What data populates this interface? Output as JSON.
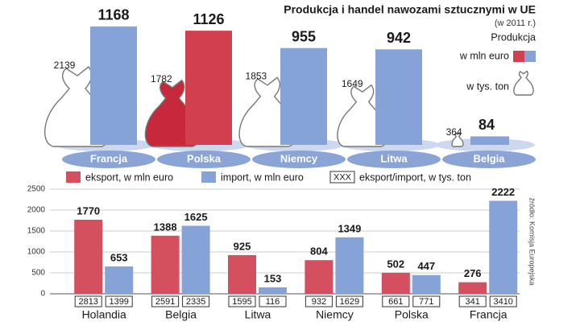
{
  "chart_data": [
    {
      "type": "production",
      "title": "Produkcja i handel nawozami sztucznymi w UE",
      "subtitle": "(w 2011 r.)",
      "legend_title": "Produkcja",
      "categories": [
        "Francja",
        "Polska",
        "Niemcy",
        "Litwa",
        "Belgia"
      ],
      "series": [
        {
          "name": "w mln euro",
          "mark": "bar",
          "colors": [
            "#86a3d8",
            "#d23f4f",
            "#86a3d8",
            "#86a3d8",
            "#86a3d8"
          ],
          "values": [
            1168,
            1126,
            955,
            942,
            84
          ]
        },
        {
          "name": "w tys. ton",
          "mark": "bag",
          "colors": [
            "#ffffff",
            "#c8283b",
            "#ffffff",
            "#ffffff",
            "#ffffff"
          ],
          "values": [
            2139,
            1782,
            1853,
            1649,
            364
          ]
        }
      ]
    },
    {
      "type": "grouped_bar",
      "categories": [
        "Holandia",
        "Belgia",
        "Litwa",
        "Niemcy",
        "Polska",
        "Francja"
      ],
      "series": [
        {
          "name": "eksport, w mln euro",
          "color": "#d4505e",
          "values": [
            1770,
            1388,
            925,
            804,
            502,
            276
          ],
          "tonnes": [
            2813,
            2591,
            1595,
            932,
            661,
            341
          ]
        },
        {
          "name": "import,  w mln euro",
          "color": "#86a3d8",
          "values": [
            653,
            1625,
            153,
            1349,
            447,
            2222
          ],
          "tonnes": [
            1399,
            2335,
            116,
            1629,
            771,
            3410
          ]
        }
      ],
      "box_legend": {
        "sample": "XXX",
        "label": "eksport/import, w tys. ton"
      },
      "ylim": [
        0,
        2500
      ],
      "yticks": [
        0,
        500,
        1000,
        1500,
        2000,
        2500
      ],
      "grid": true,
      "source": "źródło: Komisja Europejska"
    }
  ]
}
